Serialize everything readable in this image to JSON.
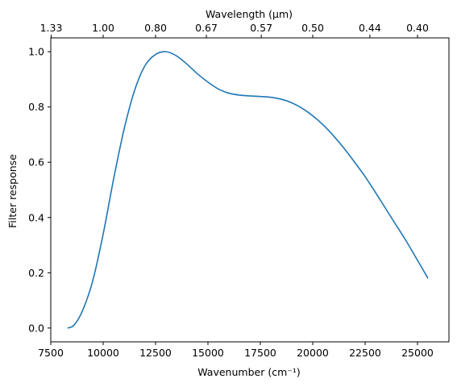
{
  "chart_data": {
    "type": "line",
    "xlabel": "Wavenumber (cm⁻¹)",
    "ylabel": "Filter response",
    "top_xlabel": "Wavelength (μm)",
    "xlim": [
      7500,
      26500
    ],
    "ylim": [
      -0.05,
      1.05
    ],
    "grid": false,
    "x_ticks": [
      7500,
      10000,
      12500,
      15000,
      17500,
      20000,
      22500,
      25000
    ],
    "x_tick_labels": [
      "7500",
      "10000",
      "12500",
      "15000",
      "17500",
      "20000",
      "22500",
      "25000"
    ],
    "y_ticks": [
      0.0,
      0.2,
      0.4,
      0.6,
      0.8,
      1.0
    ],
    "y_tick_labels": [
      "0.0",
      "0.2",
      "0.4",
      "0.6",
      "0.8",
      "1.0"
    ],
    "top_ticks_wavelength_um": [
      1.33,
      1.0,
      0.8,
      0.67,
      0.57,
      0.5,
      0.44,
      0.4
    ],
    "top_tick_labels": [
      "1.33",
      "1.00",
      "0.80",
      "0.67",
      "0.57",
      "0.50",
      "0.44",
      "0.40"
    ],
    "series": [
      {
        "color": "#1f77b4",
        "x": [
          8300,
          8600,
          9000,
          9500,
          10000,
          10500,
          11000,
          11500,
          12000,
          12500,
          13000,
          13500,
          14000,
          14500,
          15000,
          15500,
          16000,
          16500,
          17000,
          17500,
          18000,
          18500,
          19000,
          19500,
          20000,
          20500,
          21000,
          21500,
          22000,
          22500,
          23000,
          23500,
          24000,
          24500,
          25000,
          25500
        ],
        "y": [
          0.0,
          0.01,
          0.06,
          0.17,
          0.34,
          0.54,
          0.72,
          0.86,
          0.95,
          0.99,
          1.0,
          0.985,
          0.955,
          0.92,
          0.89,
          0.865,
          0.85,
          0.843,
          0.84,
          0.838,
          0.835,
          0.828,
          0.815,
          0.795,
          0.768,
          0.735,
          0.695,
          0.65,
          0.6,
          0.548,
          0.49,
          0.43,
          0.37,
          0.31,
          0.245,
          0.18
        ]
      }
    ]
  }
}
